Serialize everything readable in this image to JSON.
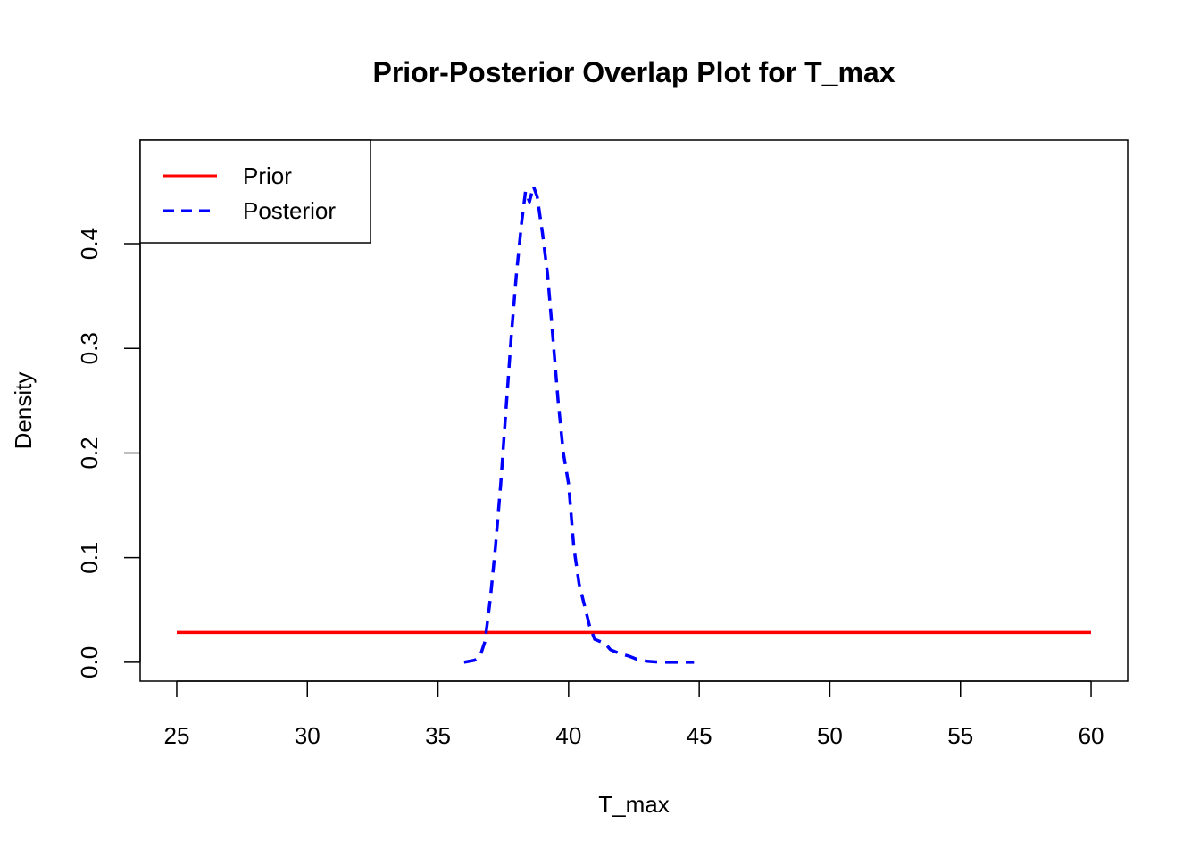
{
  "chart_data": {
    "type": "line",
    "title": "Prior-Posterior Overlap Plot for T_max",
    "xlabel": "T_max",
    "ylabel": "Density",
    "xlim": [
      23.6,
      61.4
    ],
    "ylim": [
      -0.018,
      0.499
    ],
    "x_ticks": [
      25,
      30,
      35,
      40,
      45,
      50,
      55,
      60
    ],
    "x_tick_labels": [
      "25",
      "30",
      "35",
      "40",
      "45",
      "50",
      "55",
      "60"
    ],
    "y_ticks": [
      0.0,
      0.1,
      0.2,
      0.3,
      0.4
    ],
    "y_tick_labels": [
      "0.0",
      "0.1",
      "0.2",
      "0.3",
      "0.4"
    ],
    "grid": false,
    "legend_position": "top-left",
    "series": [
      {
        "name": "Prior",
        "color": "#ff0000",
        "style": "solid",
        "x": [
          25,
          60
        ],
        "y": [
          0.02857,
          0.02857
        ]
      },
      {
        "name": "Posterior",
        "color": "#0000ff",
        "style": "dashed",
        "x": [
          36.0,
          36.4,
          36.6,
          36.8,
          37.0,
          37.2,
          37.4,
          37.6,
          37.8,
          38.0,
          38.2,
          38.35,
          38.5,
          38.65,
          38.8,
          39.0,
          39.2,
          39.4,
          39.6,
          39.8,
          40.0,
          40.2,
          40.4,
          40.6,
          40.8,
          41.0,
          41.2,
          41.4,
          41.6,
          41.8,
          42.0,
          42.3,
          42.6,
          43.0,
          43.5,
          44.0,
          44.8
        ],
        "y": [
          0.0,
          0.002,
          0.005,
          0.02,
          0.06,
          0.11,
          0.17,
          0.24,
          0.31,
          0.37,
          0.42,
          0.45,
          0.44,
          0.455,
          0.445,
          0.41,
          0.37,
          0.31,
          0.25,
          0.2,
          0.17,
          0.11,
          0.075,
          0.055,
          0.035,
          0.022,
          0.02,
          0.018,
          0.012,
          0.01,
          0.008,
          0.006,
          0.003,
          0.001,
          0.0,
          0.0,
          0.0
        ]
      }
    ]
  }
}
